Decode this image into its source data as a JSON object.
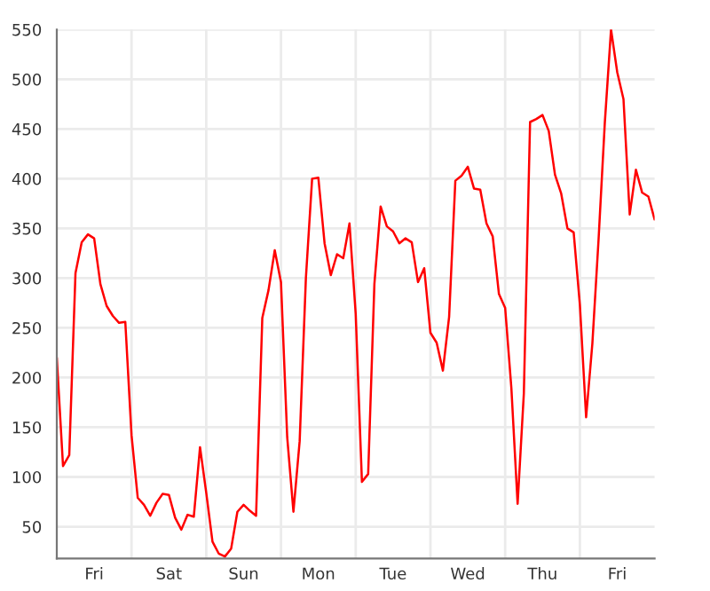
{
  "chart_data": {
    "type": "line",
    "categories": [
      null,
      null,
      null,
      null,
      null,
      null,
      "Fri",
      null,
      null,
      null,
      null,
      null,
      null,
      null,
      null,
      null,
      null,
      null,
      "Sat",
      null,
      null,
      null,
      null,
      null,
      null,
      null,
      null,
      null,
      null,
      null,
      "Sun",
      null,
      null,
      null,
      null,
      null,
      null,
      null,
      null,
      null,
      null,
      null,
      "Mon",
      null,
      null,
      null,
      null,
      null,
      null,
      null,
      null,
      null,
      null,
      null,
      "Tue",
      null,
      null,
      null,
      null,
      null,
      null,
      null,
      null,
      null,
      null,
      null,
      "Wed",
      null,
      null,
      null,
      null,
      null,
      null,
      null,
      null,
      null,
      null,
      null,
      "Thu",
      null,
      null,
      null,
      null,
      null,
      null,
      null,
      null,
      null,
      null,
      null,
      "Fri",
      null,
      null,
      null,
      null,
      null,
      null
    ],
    "series": [
      {
        "color": "#ff0000",
        "values": [
          220,
          111,
          122,
          305,
          336,
          344,
          340,
          294,
          272,
          262,
          255,
          256,
          142,
          79,
          72,
          61,
          74,
          83,
          82,
          59,
          47,
          62,
          60,
          130,
          84,
          35,
          23,
          20,
          28,
          65,
          72,
          66,
          61,
          260,
          288,
          328,
          296,
          140,
          65,
          136,
          300,
          400,
          401,
          335,
          303,
          324,
          320,
          355,
          264,
          95,
          103,
          294,
          372,
          352,
          347,
          335,
          340,
          336,
          296,
          310,
          245,
          235,
          207,
          261,
          398,
          403,
          412,
          390,
          389,
          355,
          342,
          284,
          270,
          189,
          73,
          184,
          457,
          460,
          464,
          448,
          404,
          385,
          350,
          346,
          273,
          160,
          234,
          339,
          456,
          550,
          507,
          480,
          364,
          409,
          386,
          382,
          359
        ]
      }
    ],
    "ylim": [
      18,
      550
    ],
    "yticks": [
      50,
      100,
      150,
      200,
      250,
      300,
      350,
      400,
      450,
      500,
      550
    ],
    "grid": true,
    "marker": "none",
    "line_style": "solid"
  }
}
